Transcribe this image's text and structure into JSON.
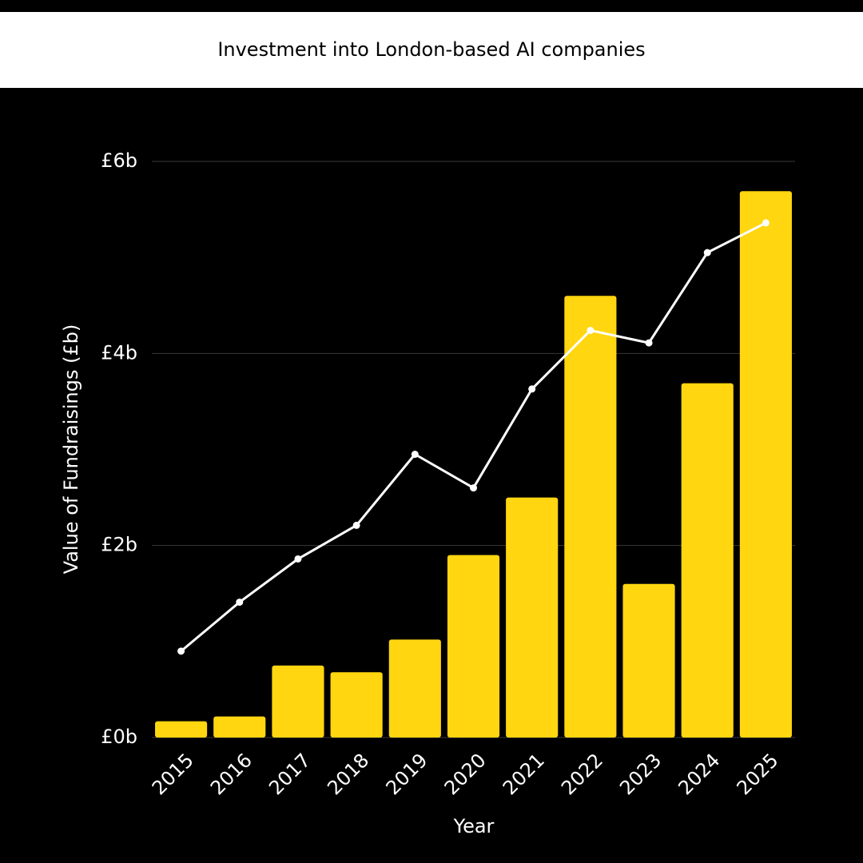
{
  "chart_data": {
    "type": "bar",
    "title": "Investment into London-based AI companies",
    "x_label": "Year",
    "y_label": "Value of Fundraisings (£b)",
    "categories": [
      "2015",
      "2016",
      "2017",
      "2018",
      "2019",
      "2020",
      "2021",
      "2022",
      "2023",
      "2024",
      "2025"
    ],
    "series": [
      {
        "type": "bar",
        "color": "#ffd60f",
        "values": [
          0.17,
          0.22,
          0.75,
          0.68,
          1.02,
          1.9,
          2.5,
          4.6,
          1.6,
          3.69,
          5.69
        ]
      },
      {
        "type": "line",
        "color": "#ffffff",
        "values": [
          0.9,
          1.41,
          1.86,
          2.21,
          2.95,
          2.6,
          3.63,
          4.24,
          4.11,
          5.05,
          5.36
        ]
      }
    ],
    "ylim": [
      0,
      6
    ],
    "yticks": [
      {
        "value": 0,
        "label": "£0b"
      },
      {
        "value": 2,
        "label": "£2b"
      },
      {
        "value": 4,
        "label": "£4b"
      },
      {
        "value": 6,
        "label": "£6b"
      }
    ],
    "grid": true
  }
}
